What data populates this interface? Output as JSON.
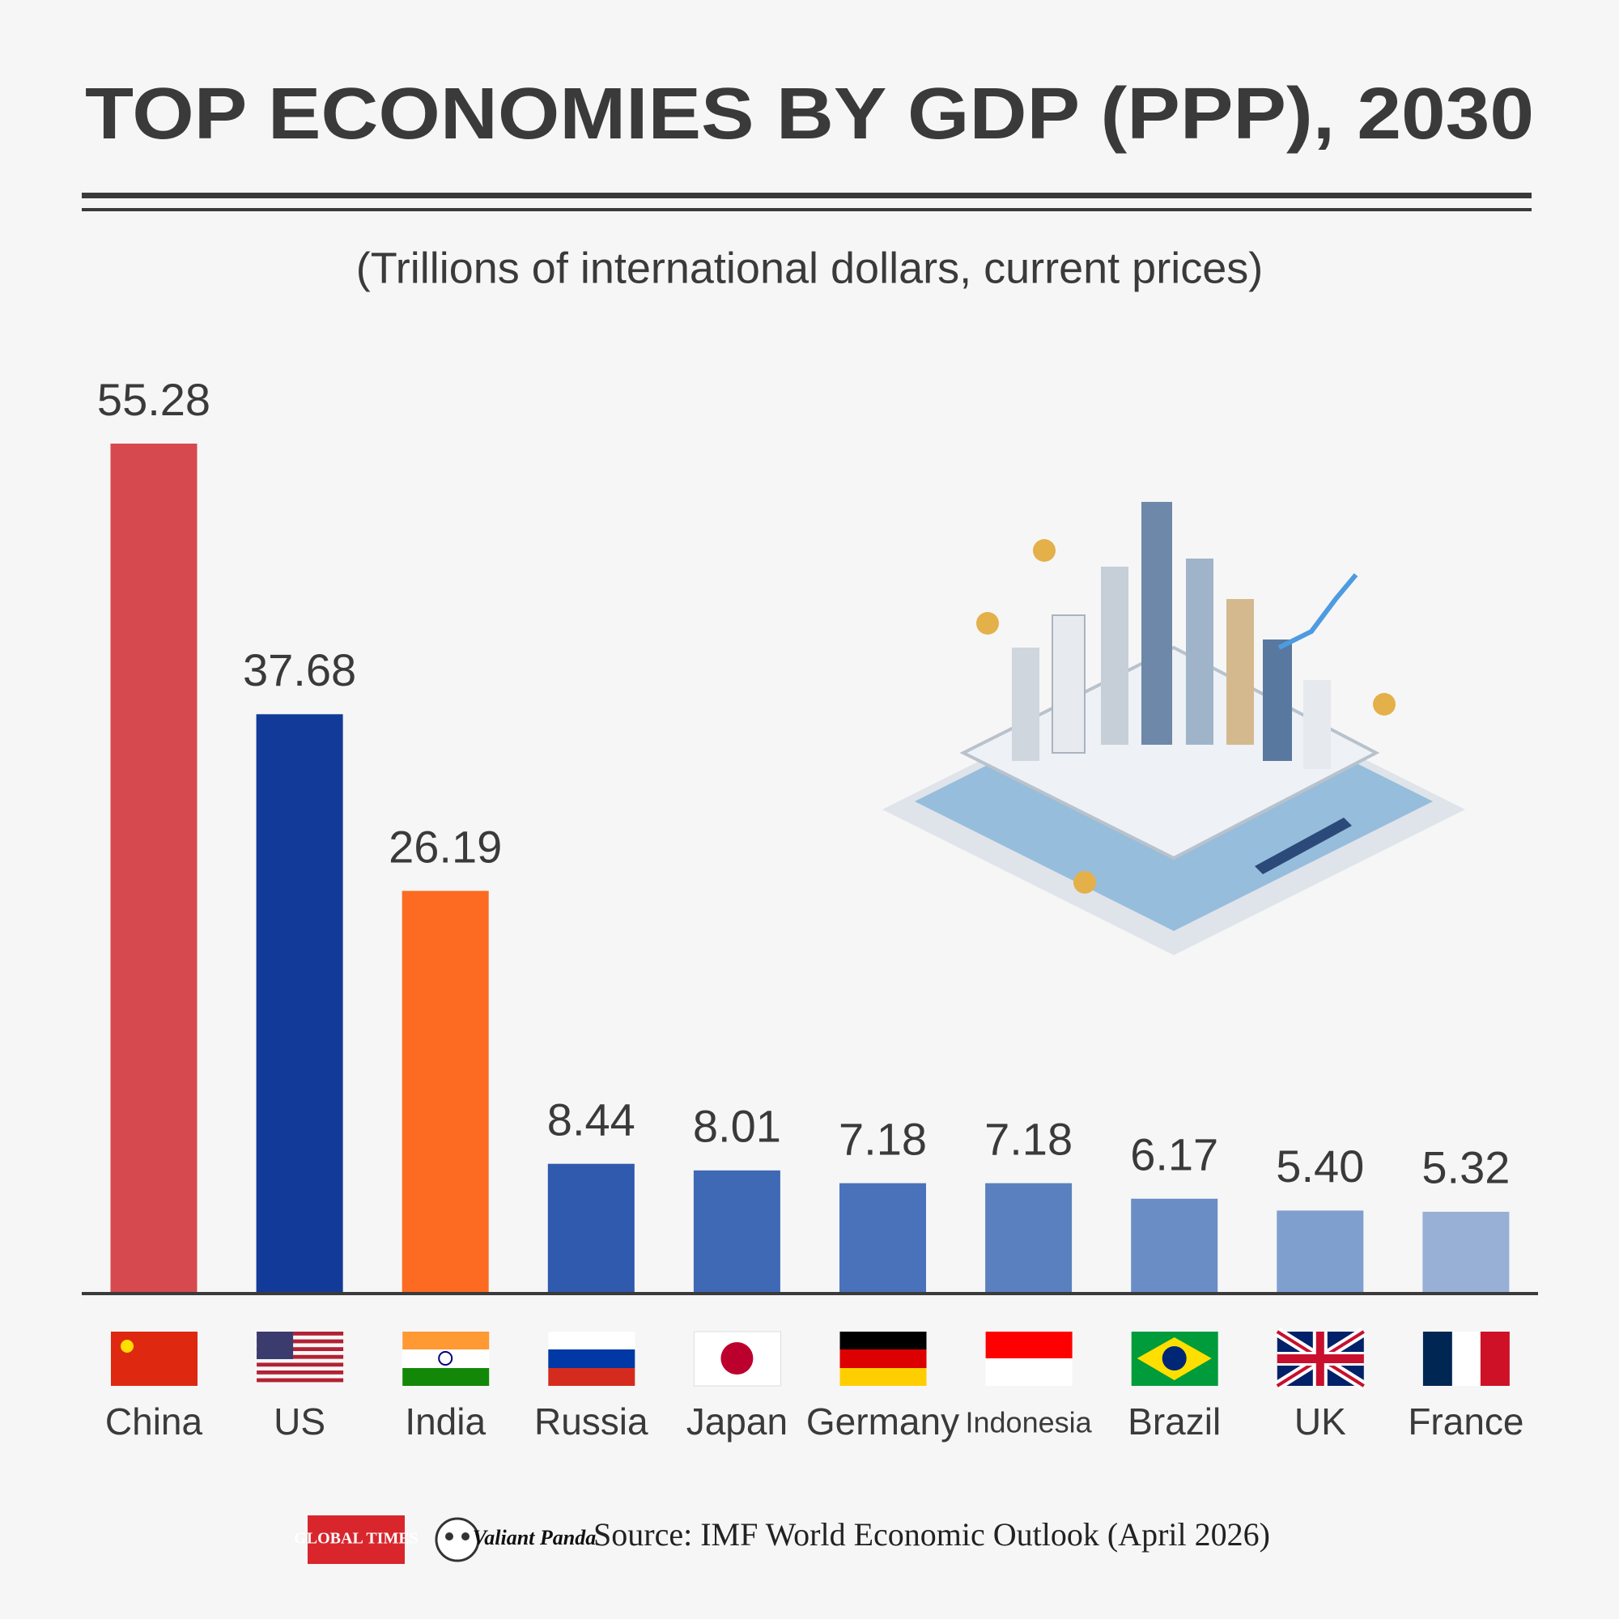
{
  "chart_data": {
    "type": "bar",
    "title": "TOP ECONOMIES BY GDP (PPP), 2030",
    "subtitle": "(Trillions of international dollars, current prices)",
    "categories": [
      "China",
      "US",
      "India",
      "Russia",
      "Japan",
      "Germany",
      "Indonesia",
      "Brazil",
      "UK",
      "France"
    ],
    "values": [
      55.28,
      37.68,
      26.19,
      8.44,
      8.01,
      7.18,
      7.18,
      6.17,
      5.4,
      5.32
    ],
    "value_labels": [
      "55.28",
      "37.68",
      "26.19",
      "8.44",
      "8.01",
      "7.18",
      "7.18",
      "6.17",
      "5.40",
      "5.32"
    ],
    "colors": [
      "#d64a4f",
      "#123a99",
      "#fd6a21",
      "#2f5aad",
      "#3f68b5",
      "#4a72ba",
      "#5b80bf",
      "#6a8dc6",
      "#7f9fcf",
      "#98afd6"
    ],
    "source": "Source: IMF World Economic Outlook (April 2026)",
    "logos": [
      "GLOBAL TIMES",
      "Valiant Panda"
    ]
  }
}
